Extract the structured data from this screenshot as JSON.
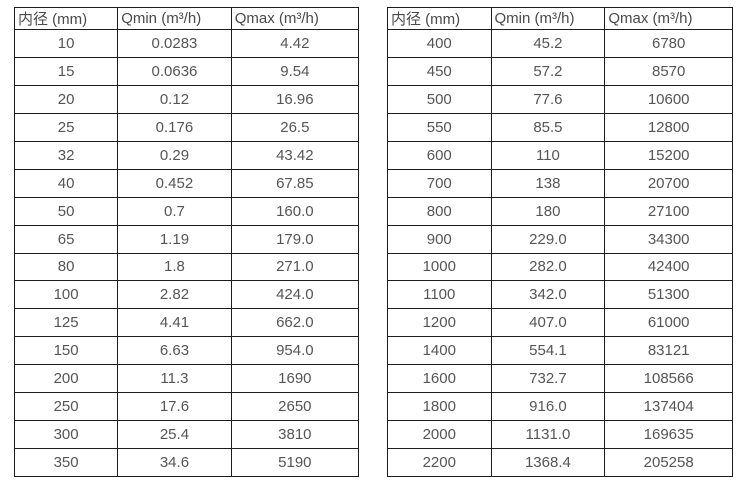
{
  "page": {
    "background_color": "#ffffff",
    "border_color": "#1c1c1c",
    "header_text_color": "#4a4a4a",
    "cell_text_color": "#555555"
  },
  "tables": [
    {
      "name": "flow-spec-table-small-diameters",
      "headers": [
        "内径 (mm)",
        "Qmin (m³/h)",
        "Qmax (m³/h)"
      ],
      "rows": [
        [
          "10",
          "0.0283",
          "4.42"
        ],
        [
          "15",
          "0.0636",
          "9.54"
        ],
        [
          "20",
          "0.12",
          "16.96"
        ],
        [
          "25",
          "0.176",
          "26.5"
        ],
        [
          "32",
          "0.29",
          "43.42"
        ],
        [
          "40",
          "0.452",
          "67.85"
        ],
        [
          "50",
          "0.7",
          "160.0"
        ],
        [
          "65",
          "1.19",
          "179.0"
        ],
        [
          "80",
          "1.8",
          "271.0"
        ],
        [
          "100",
          "2.82",
          "424.0"
        ],
        [
          "125",
          "4.41",
          "662.0"
        ],
        [
          "150",
          "6.63",
          "954.0"
        ],
        [
          "200",
          "11.3",
          "1690"
        ],
        [
          "250",
          "17.6",
          "2650"
        ],
        [
          "300",
          "25.4",
          "3810"
        ],
        [
          "350",
          "34.6",
          "5190"
        ]
      ]
    },
    {
      "name": "flow-spec-table-large-diameters",
      "headers": [
        "内径 (mm)",
        "Qmin (m³/h)",
        "Qmax (m³/h)"
      ],
      "rows": [
        [
          "400",
          "45.2",
          "6780"
        ],
        [
          "450",
          "57.2",
          "8570"
        ],
        [
          "500",
          "77.6",
          "10600"
        ],
        [
          "550",
          "85.5",
          "12800"
        ],
        [
          "600",
          "110",
          "15200"
        ],
        [
          "700",
          "138",
          "20700"
        ],
        [
          "800",
          "180",
          "27100"
        ],
        [
          "900",
          "229.0",
          "34300"
        ],
        [
          "1000",
          "282.0",
          "42400"
        ],
        [
          "1100",
          "342.0",
          "51300"
        ],
        [
          "1200",
          "407.0",
          "61000"
        ],
        [
          "1400",
          "554.1",
          "83121"
        ],
        [
          "1600",
          "732.7",
          "108566"
        ],
        [
          "1800",
          "916.0",
          "137404"
        ],
        [
          "2000",
          "1131.0",
          "169635"
        ],
        [
          "2200",
          "1368.4",
          "205258"
        ]
      ]
    }
  ],
  "chart_data": [
    {
      "type": "table",
      "title": "",
      "columns": [
        "内径 (mm)",
        "Qmin (m³/h)",
        "Qmax (m³/h)"
      ],
      "rows": [
        [
          10,
          0.0283,
          4.42
        ],
        [
          15,
          0.0636,
          9.54
        ],
        [
          20,
          0.12,
          16.96
        ],
        [
          25,
          0.176,
          26.5
        ],
        [
          32,
          0.29,
          43.42
        ],
        [
          40,
          0.452,
          67.85
        ],
        [
          50,
          0.7,
          160.0
        ],
        [
          65,
          1.19,
          179.0
        ],
        [
          80,
          1.8,
          271.0
        ],
        [
          100,
          2.82,
          424.0
        ],
        [
          125,
          4.41,
          662.0
        ],
        [
          150,
          6.63,
          954.0
        ],
        [
          200,
          11.3,
          1690
        ],
        [
          250,
          17.6,
          2650
        ],
        [
          300,
          25.4,
          3810
        ],
        [
          350,
          34.6,
          5190
        ]
      ]
    },
    {
      "type": "table",
      "title": "",
      "columns": [
        "内径 (mm)",
        "Qmin (m³/h)",
        "Qmax (m³/h)"
      ],
      "rows": [
        [
          400,
          45.2,
          6780
        ],
        [
          450,
          57.2,
          8570
        ],
        [
          500,
          77.6,
          10600
        ],
        [
          550,
          85.5,
          12800
        ],
        [
          600,
          110,
          15200
        ],
        [
          700,
          138,
          20700
        ],
        [
          800,
          180,
          27100
        ],
        [
          900,
          229.0,
          34300
        ],
        [
          1000,
          282.0,
          42400
        ],
        [
          1100,
          342.0,
          51300
        ],
        [
          1200,
          407.0,
          61000
        ],
        [
          1400,
          554.1,
          83121
        ],
        [
          1600,
          732.7,
          108566
        ],
        [
          1800,
          916.0,
          137404
        ],
        [
          2000,
          1131.0,
          169635
        ],
        [
          2200,
          1368.4,
          205258
        ]
      ]
    }
  ]
}
